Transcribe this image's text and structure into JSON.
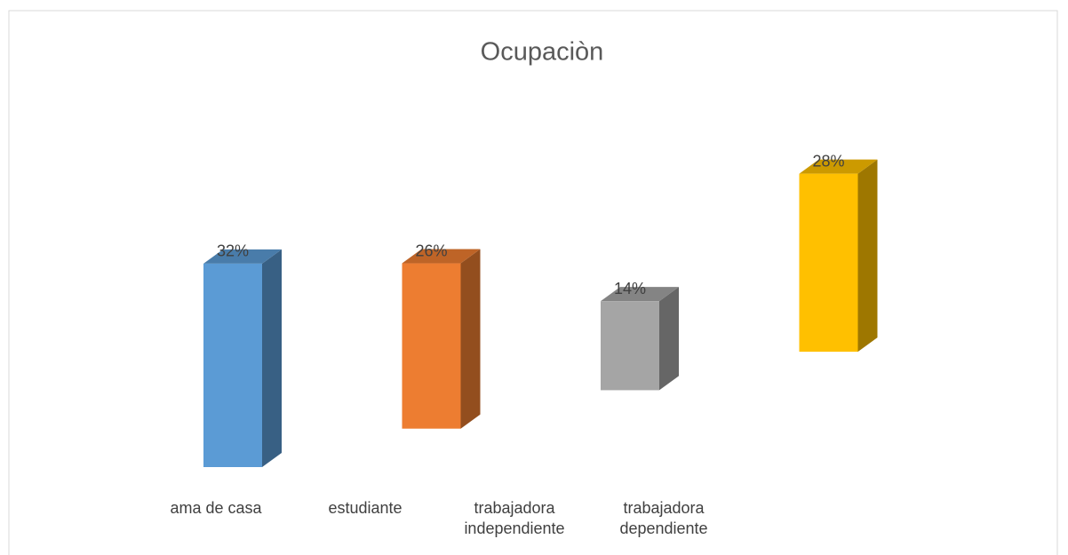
{
  "chart_data": {
    "type": "bar3d",
    "title": "Ocupaciòn",
    "categories": [
      "ama de casa",
      "estudiante",
      "trabajadora independiente",
      "trabajadora dependiente"
    ],
    "values": [
      32,
      26,
      14,
      28
    ],
    "value_labels": [
      "32%",
      "26%",
      "14%",
      "28%"
    ],
    "colors": [
      "#5b9bd5",
      "#ed7d31",
      "#a5a5a5",
      "#ffc000"
    ]
  }
}
